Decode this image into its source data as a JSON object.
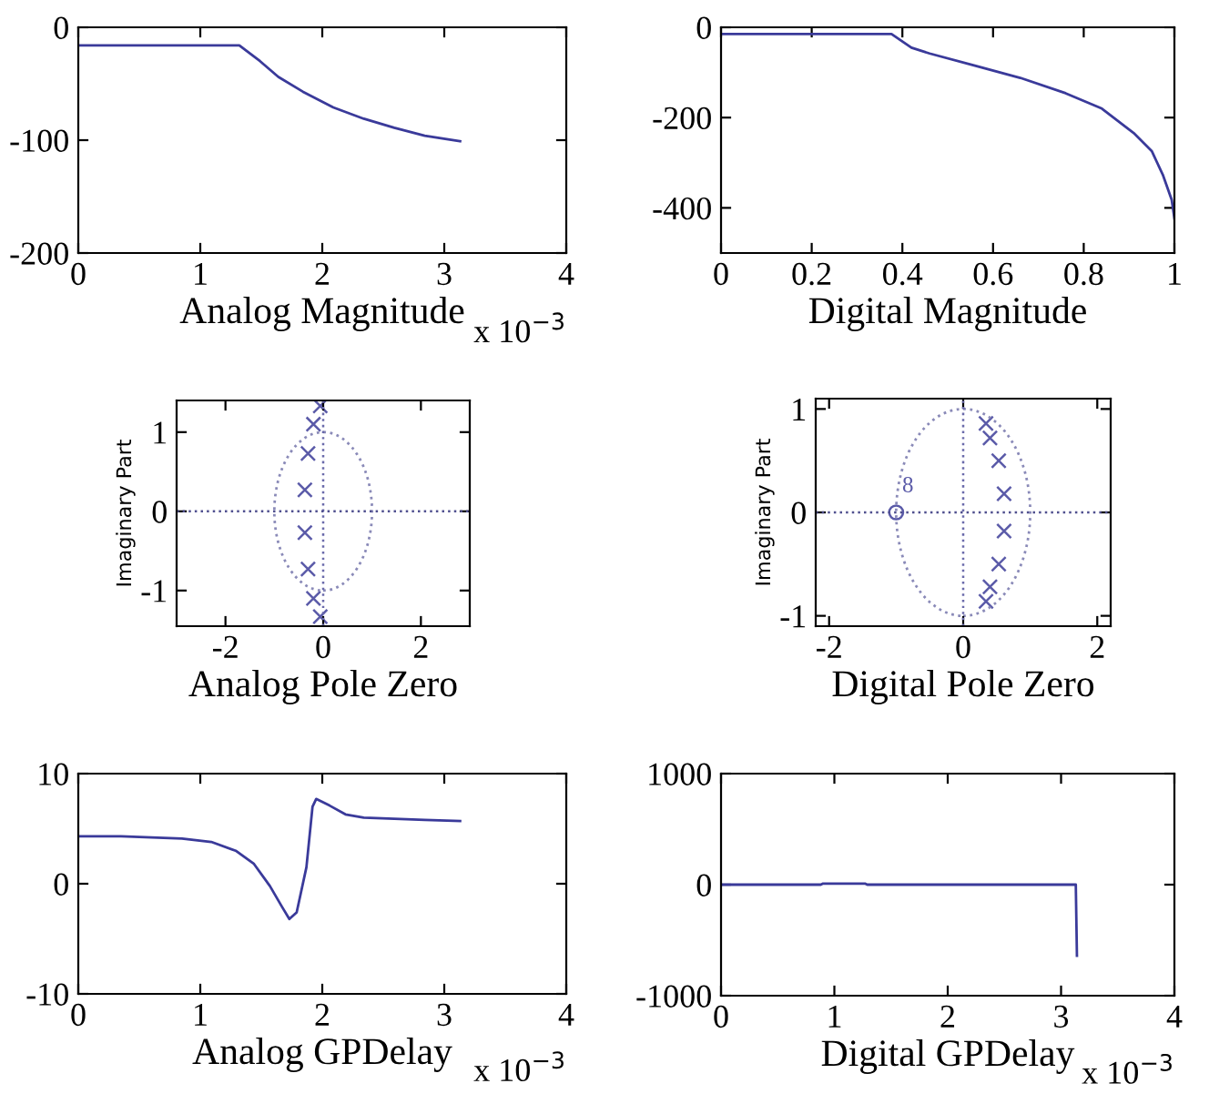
{
  "chart_data": [
    {
      "type": "line",
      "xlabel": "Analog Magnitude",
      "xlim": [
        0,
        4
      ],
      "xticks": [
        0,
        1,
        2,
        3,
        4
      ],
      "ylim": [
        -200,
        0
      ],
      "yticks": [
        -200,
        -100,
        0
      ],
      "annotations": [
        "x 10$^{−3}$"
      ],
      "series": [
        {
          "color": "#3a3a9a",
          "x": [
            0,
            1.32,
            1.49,
            1.64,
            1.84,
            2.09,
            2.34,
            2.59,
            2.84,
            3.13
          ],
          "values": [
            -16,
            -16,
            -30,
            -44,
            -57,
            -71,
            -81,
            -89,
            -96,
            -101
          ]
        }
      ]
    },
    {
      "type": "line",
      "xlabel": "Digital Magnitude",
      "xlim": [
        0,
        1
      ],
      "xticks": [
        0,
        0.2,
        0.4,
        0.6,
        0.8,
        1
      ],
      "ylim": [
        -500,
        0
      ],
      "yticks": [
        -400,
        -200,
        0
      ],
      "series": [
        {
          "color": "#3a3a9a",
          "x": [
            0,
            0.376,
            0.42,
            0.46,
            0.56,
            0.66,
            0.76,
            0.84,
            0.91,
            0.95,
            0.975,
            0.994,
            1.0
          ],
          "values": [
            -15,
            -15,
            -45,
            -58,
            -85,
            -112,
            -146,
            -180,
            -234,
            -274,
            -328,
            -382,
            -423
          ]
        }
      ]
    },
    {
      "type": "scatter",
      "xlabel": "Analog Pole Zero",
      "ylabel": "Imaginary Part",
      "xlim": [
        -3,
        3
      ],
      "xticks": [
        -2,
        0,
        2
      ],
      "ylim": [
        -1.45,
        1.4
      ],
      "yticks": [
        -1,
        0,
        1
      ],
      "ref_lines": [
        {
          "axis": "x",
          "value": 0,
          "color": "#6a6aaa",
          "line_style": "dotted"
        },
        {
          "axis": "y",
          "value": 0,
          "color": "#50508f",
          "line_style": "dotted"
        }
      ],
      "series": [
        {
          "marker": "cross",
          "color": "#5a5aa8",
          "x": [
            -0.06,
            -0.2,
            -0.31,
            -0.375,
            -0.375,
            -0.31,
            -0.2,
            -0.06
          ],
          "values": [
            1.33,
            1.1,
            0.73,
            0.27,
            -0.27,
            -0.73,
            -1.1,
            -1.33
          ]
        }
      ]
    },
    {
      "type": "scatter",
      "xlabel": "Digital Pole Zero",
      "ylabel": "Imaginary Part",
      "xlim": [
        -2.2,
        2.2
      ],
      "xticks": [
        -2,
        0,
        2
      ],
      "ylim": [
        -1.1,
        1.1
      ],
      "yticks": [
        -1,
        0,
        1
      ],
      "annotations": [
        {
          "text": "8",
          "x": -0.91,
          "y": 0.15
        }
      ],
      "ref_lines": [
        {
          "axis": "x",
          "value": 0,
          "color": "#6a6aaa",
          "line_style": "dotted"
        },
        {
          "axis": "y",
          "value": 0,
          "color": "#50508f",
          "line_style": "dotted"
        }
      ],
      "series": [
        {
          "marker": "cross",
          "color": "#5a5aa8",
          "x": [
            0.34,
            0.4,
            0.53,
            0.61,
            0.61,
            0.53,
            0.4,
            0.34
          ],
          "values": [
            0.86,
            0.72,
            0.5,
            0.18,
            -0.18,
            -0.5,
            -0.72,
            -0.86
          ]
        },
        {
          "marker": "circle",
          "color": "#5a5aa8",
          "x": [
            -1.0
          ],
          "values": [
            0
          ]
        }
      ]
    },
    {
      "type": "line",
      "xlabel": "Analog GPDelay",
      "xlim": [
        0,
        4
      ],
      "xticks": [
        0,
        1,
        2,
        3,
        4
      ],
      "ylim": [
        -10,
        10
      ],
      "yticks": [
        -10,
        0,
        10
      ],
      "annotations": [
        "x 10$^{−3}$"
      ],
      "series": [
        {
          "color": "#3a3a9a",
          "x": [
            0,
            0.35,
            0.85,
            1.09,
            1.29,
            1.44,
            1.57,
            1.67,
            1.73,
            1.79,
            1.87,
            1.92,
            1.95,
            2.06,
            2.19,
            2.34,
            2.59,
            2.84,
            3.13
          ],
          "values": [
            4.3,
            4.3,
            4.1,
            3.8,
            3.0,
            1.8,
            -0.2,
            -2.1,
            -3.2,
            -2.6,
            1.5,
            7.0,
            7.7,
            7.1,
            6.3,
            6.0,
            5.9,
            5.8,
            5.7
          ]
        }
      ]
    },
    {
      "type": "line",
      "xlabel": "Digital GPDelay",
      "xlim": [
        0,
        4
      ],
      "xticks": [
        0,
        1,
        2,
        3,
        4
      ],
      "ylim": [
        -1000,
        1000
      ],
      "yticks": [
        -1000,
        0,
        1000
      ],
      "annotations": [
        "x 10$^{−3}$"
      ],
      "series": [
        {
          "color": "#3a3a9a",
          "x": [
            0,
            0.88,
            0.9,
            1.27,
            1.29,
            3.13,
            3.14
          ],
          "values": [
            0,
            0,
            10,
            10,
            0,
            0,
            -640
          ]
        }
      ]
    }
  ]
}
